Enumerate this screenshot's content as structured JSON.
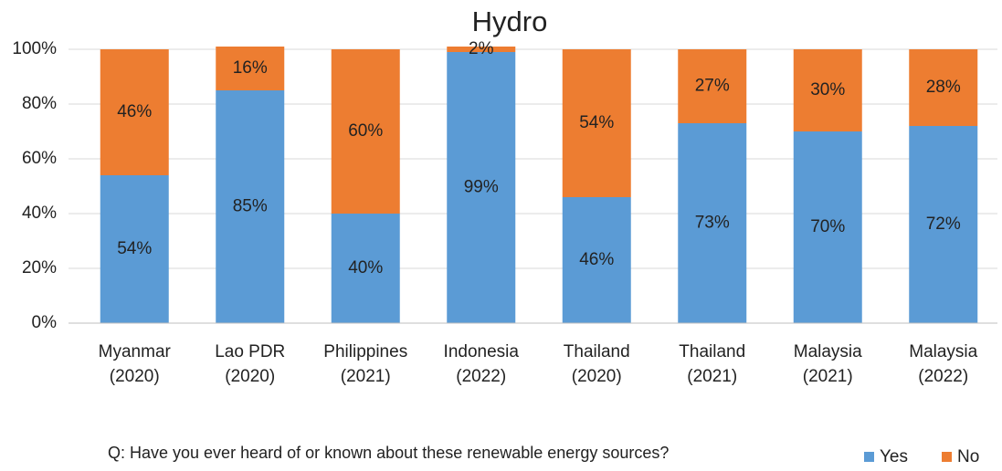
{
  "chart_data": {
    "type": "stacked_bar",
    "title": "Hydro",
    "categories": [
      "Myanmar (2020)",
      "Lao PDR (2020)",
      "Philippines (2021)",
      "Indonesia (2022)",
      "Thailand (2020)",
      "Thailand (2021)",
      "Malaysia (2021)",
      "Malaysia (2022)"
    ],
    "series": [
      {
        "name": "Yes",
        "color": "#5b9bd5",
        "values": [
          54,
          85,
          40,
          99,
          46,
          73,
          70,
          72
        ],
        "value_labels": [
          "54%",
          "85%",
          "40%",
          "99%",
          "46%",
          "73%",
          "70%",
          "72%"
        ]
      },
      {
        "name": "No",
        "color": "#ed7d31",
        "values": [
          46,
          16,
          60,
          2,
          54,
          27,
          30,
          28
        ],
        "value_labels": [
          "46%",
          "16%",
          "60%",
          "2%",
          "54%",
          "27%",
          "30%",
          "28%"
        ]
      }
    ],
    "ylim": [
      0,
      100
    ],
    "yticks": [
      {
        "value": 0,
        "label": "0%"
      },
      {
        "value": 20,
        "label": "20%"
      },
      {
        "value": 40,
        "label": "40%"
      },
      {
        "value": 60,
        "label": "60%"
      },
      {
        "value": 80,
        "label": "80%"
      },
      {
        "value": 100,
        "label": "100%"
      }
    ],
    "grid": true,
    "legend": "lower right",
    "annotation": "Q: Have you ever heard of or known about these renewable energy sources?"
  }
}
